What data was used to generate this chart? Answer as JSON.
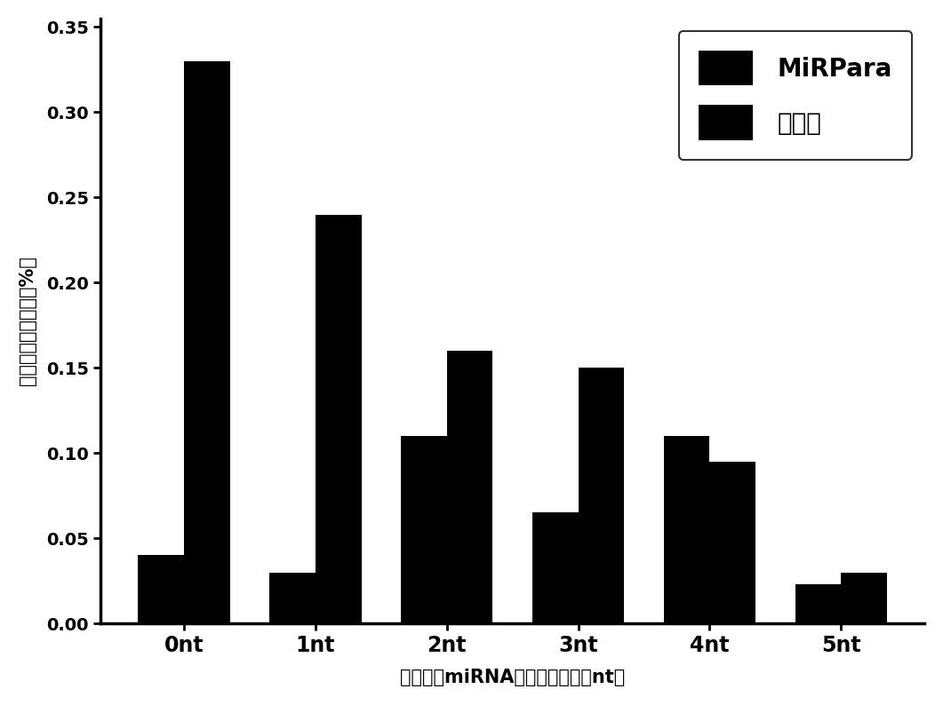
{
  "categories": [
    "0nt",
    "1nt",
    "2nt",
    "3nt",
    "4nt",
    "5nt"
  ],
  "mirpara_values": [
    0.04,
    0.03,
    0.11,
    0.065,
    0.11,
    0.023
  ],
  "patent_values": [
    0.33,
    0.24,
    0.16,
    0.15,
    0.095,
    0.03
  ],
  "bar_color": "#000000",
  "bar_width": 0.35,
  "ylim": [
    0,
    0.355
  ],
  "yticks": [
    0.0,
    0.05,
    0.1,
    0.15,
    0.2,
    0.25,
    0.3,
    0.35
  ],
  "ylabel": "候选者的识别精度（%）",
  "xlabel": "距高成熟miRNA起始位置距高（nt）",
  "legend_labels": [
    "MiRPara",
    "本专利"
  ],
  "background_color": "#ffffff",
  "figure_width": 10.61,
  "figure_height": 7.94,
  "dpi": 100
}
